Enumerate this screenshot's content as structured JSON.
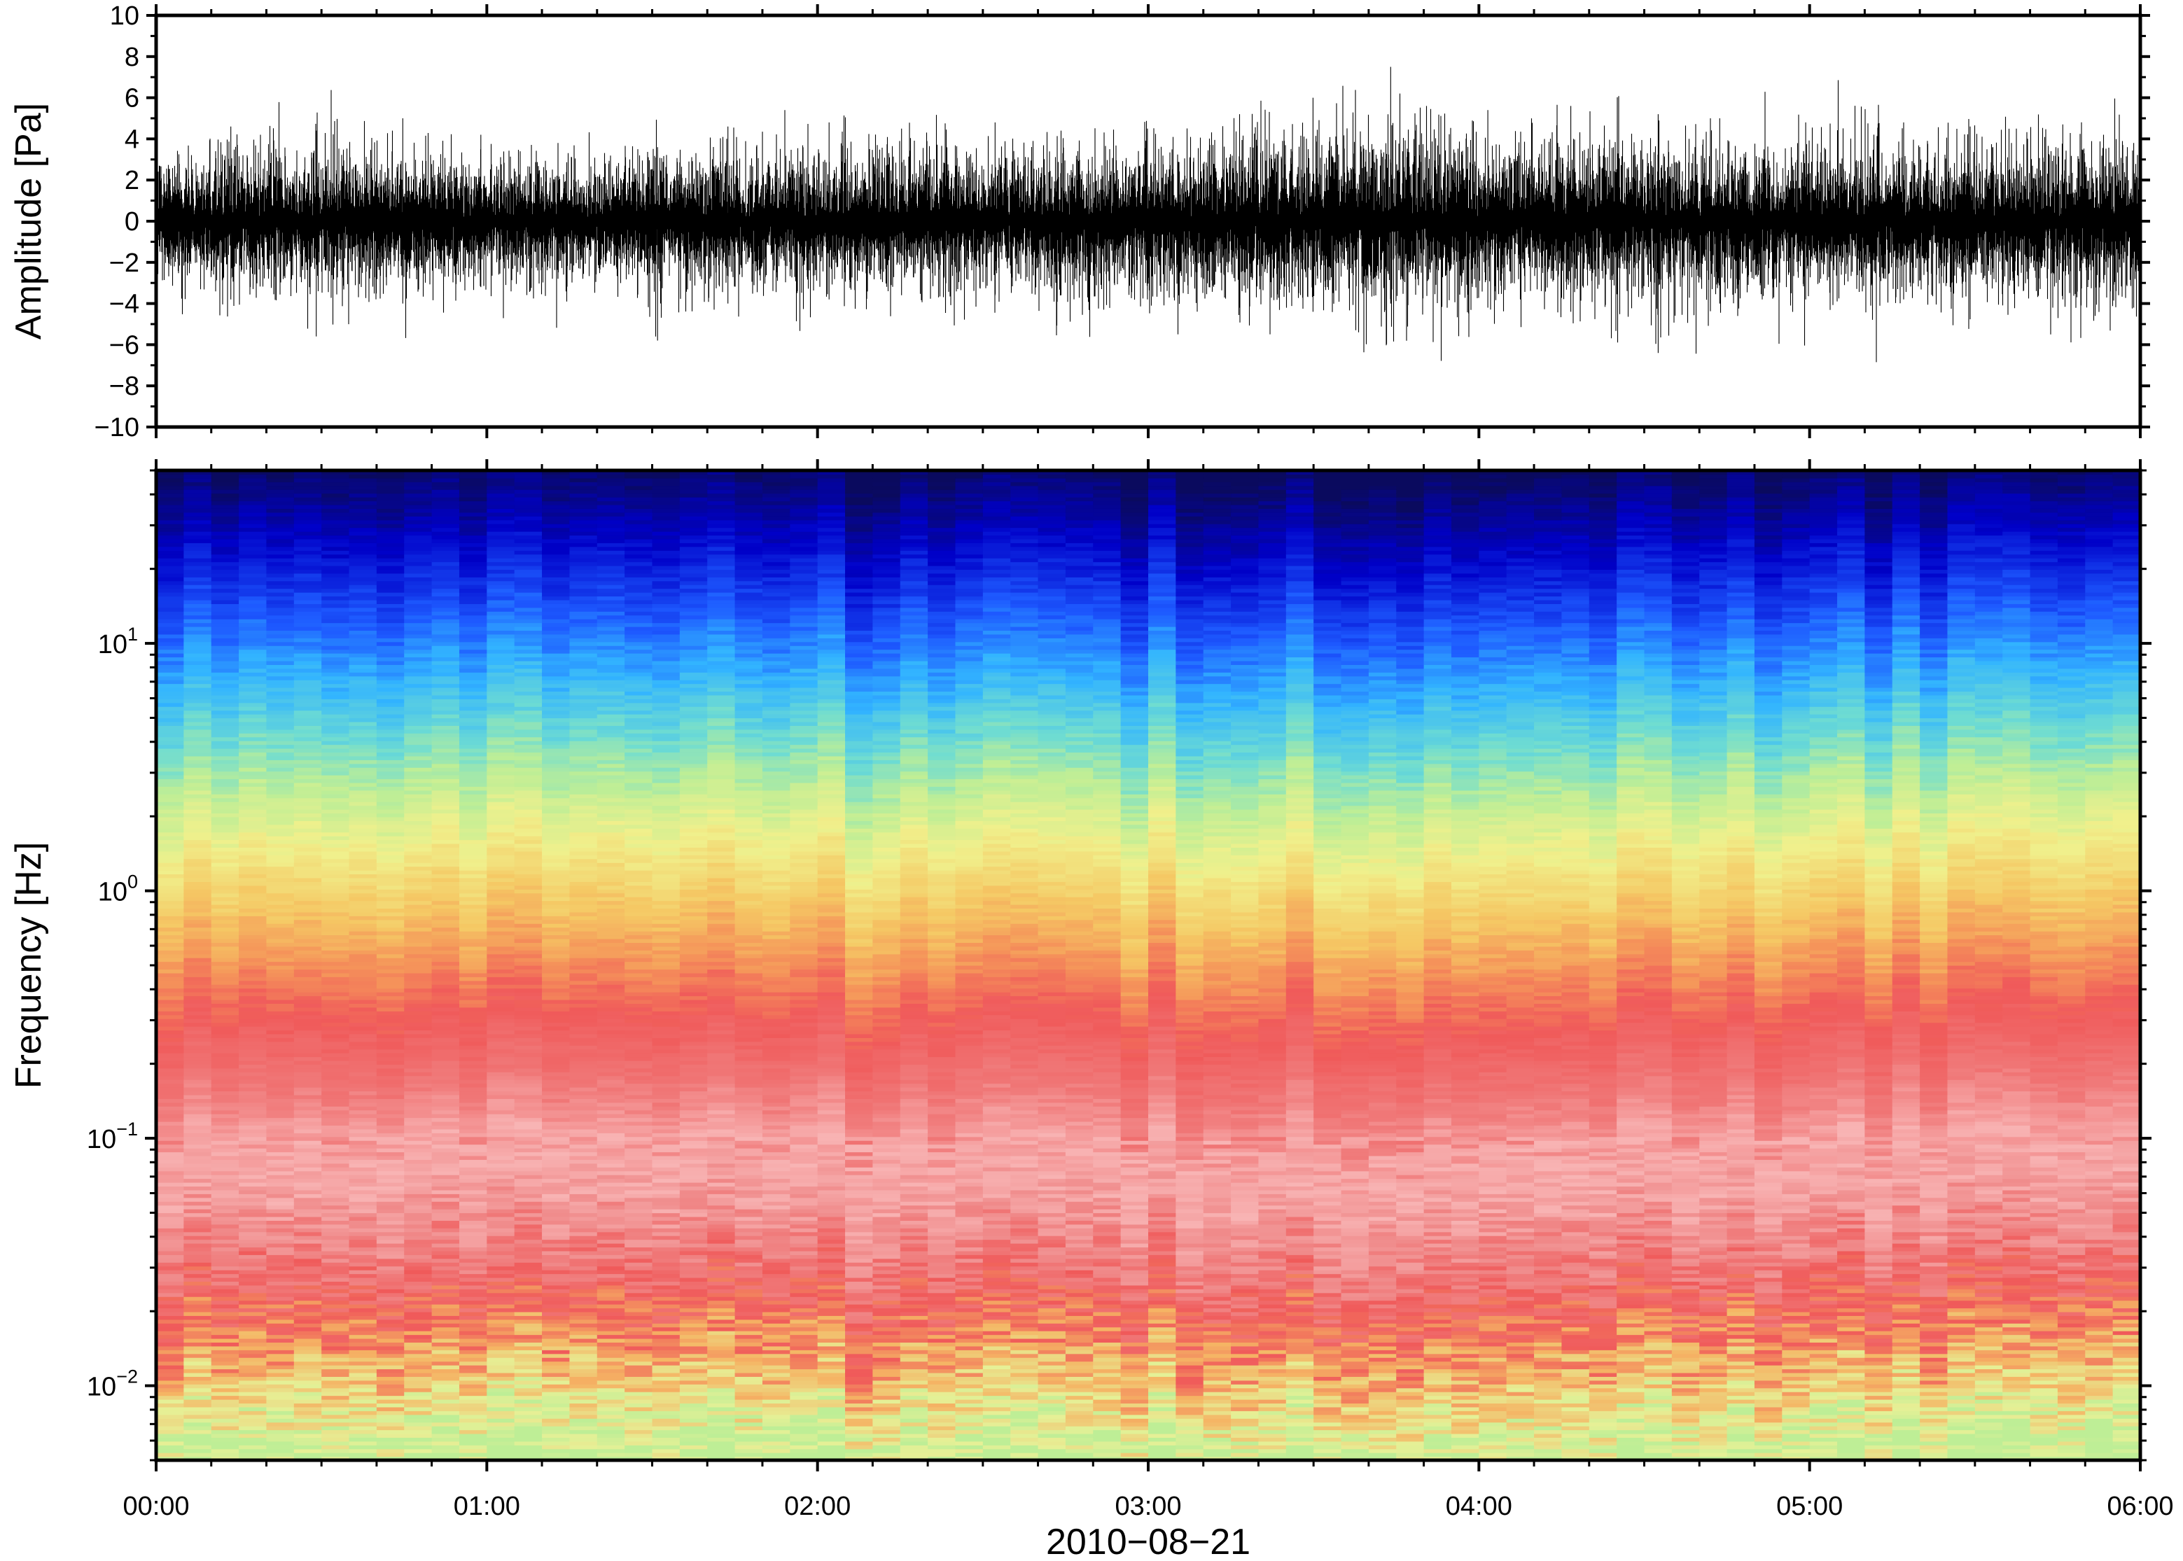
{
  "chart_data": [
    {
      "type": "line",
      "panel": "waveform",
      "title": "",
      "ylabel": "Amplitude [Pa]",
      "ylim": [
        -10,
        10
      ],
      "y_ticks": [
        "10",
        "8",
        "6",
        "4",
        "2",
        "0",
        "−2",
        "−4",
        "−6",
        "−8",
        "−10"
      ],
      "y_tick_values": [
        10,
        8,
        6,
        4,
        2,
        0,
        -2,
        -4,
        -6,
        -8,
        -10
      ],
      "series": [
        {
          "color": "#000000",
          "envelope_profile": {
            "hours": [
              0.0,
              0.25,
              0.5,
              0.75,
              1.0,
              1.25,
              1.5,
              1.75,
              2.0,
              2.25,
              2.5,
              2.75,
              3.0,
              3.25,
              3.5,
              3.75,
              4.0,
              4.25,
              4.5,
              4.75,
              5.0,
              5.25,
              5.5,
              5.75,
              6.0
            ],
            "max": [
              4.5,
              4.6,
              4.4,
              5.0,
              4.2,
              3.8,
              3.6,
              4.6,
              4.8,
              4.5,
              4.8,
              4.4,
              4.5,
              5.2,
              6.0,
              7.5,
              5.4,
              5.6,
              5.2,
              5.0,
              4.8,
              4.8,
              4.6,
              4.7,
              3.8
            ],
            "min": [
              -3.0,
              -3.8,
              -5.6,
              -4.0,
              -3.2,
              -2.8,
              -5.8,
              -4.0,
              -3.8,
              -3.6,
              -3.6,
              -3.6,
              -3.8,
              -4.2,
              -4.4,
              -4.0,
              -4.2,
              -4.4,
              -6.4,
              -4.0,
              -3.8,
              -3.8,
              -3.8,
              -3.8,
              -4.2
            ],
            "typical_std": [
              0.9,
              1.0,
              1.0,
              1.0,
              0.9,
              0.8,
              1.0,
              1.0,
              1.0,
              1.0,
              1.0,
              1.0,
              1.1,
              1.2,
              1.3,
              1.3,
              1.2,
              1.2,
              1.2,
              1.1,
              1.1,
              1.1,
              1.1,
              1.1,
              1.1
            ]
          }
        }
      ]
    },
    {
      "type": "heatmap",
      "panel": "spectrogram",
      "title": "",
      "ylabel": "Frequency [Hz]",
      "xlabel": "2010−08−21",
      "y_scale": "log",
      "ylim_hz": [
        0.005,
        50
      ],
      "y_ticks": [
        {
          "value": 10,
          "base": "10",
          "exp": "1"
        },
        {
          "value": 1,
          "base": "10",
          "exp": "0"
        },
        {
          "value": 0.1,
          "base": "10",
          "exp": "−1"
        },
        {
          "value": 0.01,
          "base": "10",
          "exp": "−2"
        }
      ],
      "x_ticks": [
        "00:00",
        "01:00",
        "02:00",
        "03:00",
        "04:00",
        "05:00",
        "06:00"
      ],
      "x_tick_hours": [
        0,
        1,
        2,
        3,
        4,
        5,
        6
      ],
      "xlim_hours": [
        0,
        6
      ],
      "colormap": [
        "#0a0a5e",
        "#0000c8",
        "#1e5aff",
        "#32b4ff",
        "#6edcd2",
        "#beee96",
        "#f0f08c",
        "#f5c864",
        "#f5965a",
        "#f05a5a",
        "#f08c8c",
        "#f8b4b4"
      ],
      "frequency_color_profile": [
        {
          "freq_hz": 50,
          "color": "#0a0a5e"
        },
        {
          "freq_hz": 25,
          "color": "#0000c8"
        },
        {
          "freq_hz": 12,
          "color": "#1e5aff"
        },
        {
          "freq_hz": 7,
          "color": "#32b4ff"
        },
        {
          "freq_hz": 4,
          "color": "#6edcd2"
        },
        {
          "freq_hz": 2.5,
          "color": "#beee96"
        },
        {
          "freq_hz": 1.5,
          "color": "#f0f08c"
        },
        {
          "freq_hz": 0.8,
          "color": "#f5c864"
        },
        {
          "freq_hz": 0.5,
          "color": "#f5965a"
        },
        {
          "freq_hz": 0.3,
          "color": "#f05a5a"
        },
        {
          "freq_hz": 0.15,
          "color": "#f07878"
        },
        {
          "freq_hz": 0.08,
          "color": "#f8b4b4"
        },
        {
          "freq_hz": 0.04,
          "color": "#f08c8c"
        },
        {
          "freq_hz": 0.02,
          "color": "#f05a5a"
        },
        {
          "freq_hz": 0.012,
          "color": "#f5b464"
        },
        {
          "freq_hz": 0.007,
          "color": "#e6f096"
        },
        {
          "freq_hz": 0.005,
          "color": "#beee96"
        }
      ]
    }
  ],
  "x_axis": {
    "shared": true,
    "tick_labels": [
      "00:00",
      "01:00",
      "02:00",
      "03:00",
      "04:00",
      "05:00",
      "06:00"
    ]
  }
}
